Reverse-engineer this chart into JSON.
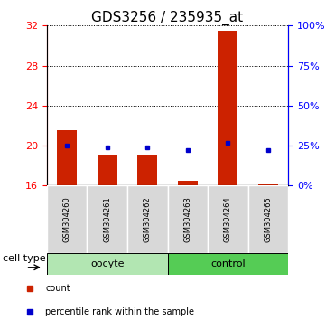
{
  "title": "GDS3256 / 235935_at",
  "samples": [
    "GSM304260",
    "GSM304261",
    "GSM304262",
    "GSM304263",
    "GSM304264",
    "GSM304265"
  ],
  "red_values": [
    21.5,
    19.0,
    19.0,
    16.5,
    31.5,
    16.2
  ],
  "blue_values_pct": [
    25,
    24,
    24,
    22,
    27,
    22
  ],
  "ylim_left": [
    16,
    32
  ],
  "ylim_right": [
    0,
    100
  ],
  "yticks_left": [
    16,
    20,
    24,
    28,
    32
  ],
  "yticks_right": [
    0,
    25,
    50,
    75,
    100
  ],
  "ytick_labels_right": [
    "0%",
    "25%",
    "50%",
    "75%",
    "100%"
  ],
  "groups": [
    {
      "label": "oocyte",
      "indices": [
        0,
        1,
        2
      ],
      "color": "#b2e6b2"
    },
    {
      "label": "control",
      "indices": [
        3,
        4,
        5
      ],
      "color": "#55cc55"
    }
  ],
  "bar_color": "#cc2200",
  "marker_color": "#0000cc",
  "baseline": 16,
  "cell_type_label": "cell type",
  "legend": [
    "count",
    "percentile rank within the sample"
  ],
  "plot_bg": "#ffffff",
  "title_fontsize": 11,
  "tick_fontsize": 8,
  "label_fontsize": 8,
  "group_label_fontsize": 8,
  "sample_fontsize": 6
}
